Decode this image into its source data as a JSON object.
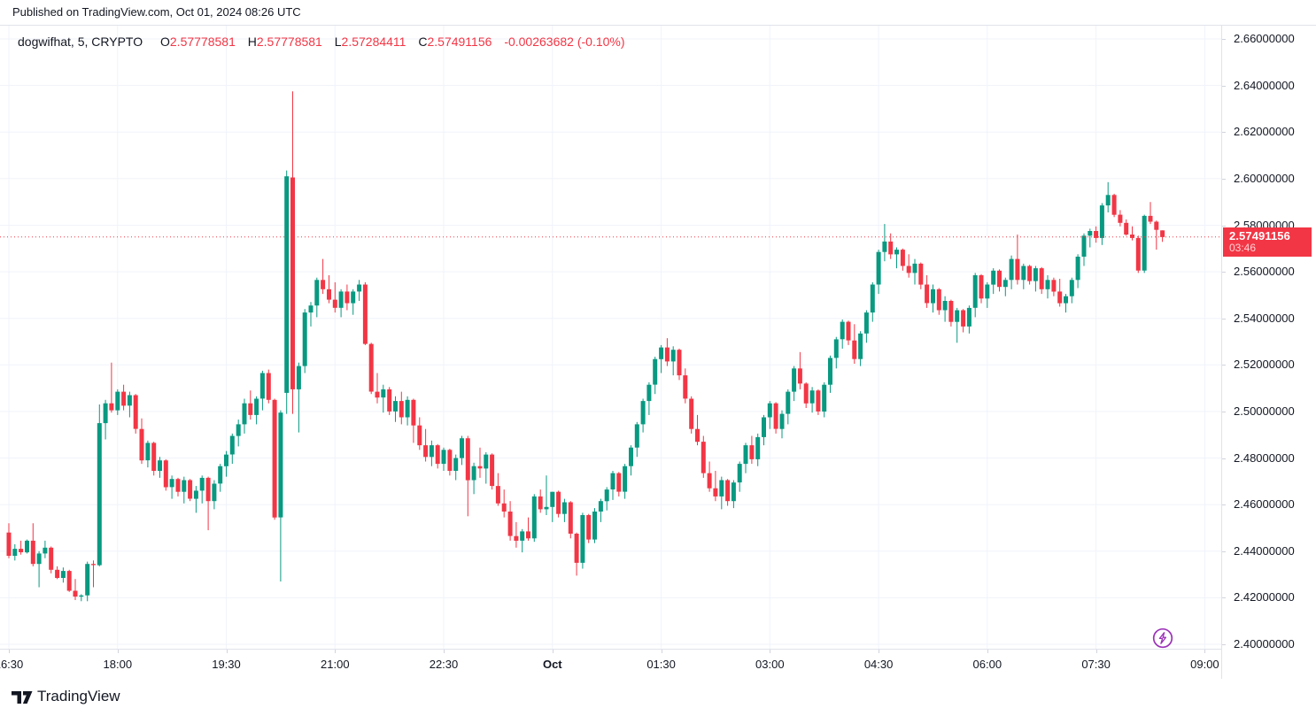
{
  "header": {
    "published_text": "Published on TradingView.com, Oct 01, 2024 08:26 UTC"
  },
  "legend": {
    "symbol_text": "dogwifhat, 5, CRYPTO",
    "o_label": "O",
    "o_value": "2.57778581",
    "h_label": "H",
    "h_value": "2.57778581",
    "l_label": "L",
    "l_value": "2.57284411",
    "c_label": "C",
    "c_value": "2.57491156",
    "change_text": "-0.00263682 (-0.10%)"
  },
  "colors": {
    "up": "#089981",
    "down": "#f23645",
    "accent_red": "#f23645",
    "grid": "#f0f3fa",
    "axis_border": "#e0e3eb",
    "tick": "#d1d4dc",
    "text": "#131722",
    "label_bg": "#f23645",
    "label_text": "#ffffff",
    "countdown_text": "#ffd2d6",
    "flash_purple": "#9c32b8",
    "background": "#ffffff"
  },
  "price_axis": {
    "labels": [
      "2.66000000",
      "2.64000000",
      "2.62000000",
      "2.60000000",
      "2.58000000",
      "2.56000000",
      "2.54000000",
      "2.52000000",
      "2.50000000",
      "2.48000000",
      "2.46000000",
      "2.44000000",
      "2.42000000",
      "2.40000000"
    ],
    "last": {
      "price_text": "2.57491156",
      "countdown": "03:46"
    }
  },
  "time_axis": {
    "labels": [
      {
        "text": "16:30",
        "bold": false
      },
      {
        "text": "18:00",
        "bold": false
      },
      {
        "text": "19:30",
        "bold": false
      },
      {
        "text": "21:00",
        "bold": false
      },
      {
        "text": "22:30",
        "bold": false
      },
      {
        "text": "Oct",
        "bold": true
      },
      {
        "text": "01:30",
        "bold": false
      },
      {
        "text": "03:00",
        "bold": false
      },
      {
        "text": "04:30",
        "bold": false
      },
      {
        "text": "06:00",
        "bold": false
      },
      {
        "text": "07:30",
        "bold": false
      },
      {
        "text": "09:00",
        "bold": false
      }
    ]
  },
  "footer": {
    "brand": "TradingView"
  },
  "chart_data": {
    "type": "candlestick",
    "title": "dogwifhat 5-minute candlestick chart",
    "symbol": "dogwifhat",
    "interval": "5",
    "exchange": "CRYPTO",
    "start_time": "16:30",
    "step_minutes": 5,
    "ylim": [
      2.4,
      2.66
    ],
    "grid": true,
    "last_bar": {
      "open": 2.57778581,
      "high": 2.57778581,
      "low": 2.57284411,
      "close": 2.57491156,
      "change": -0.00263682,
      "change_pct": -0.1,
      "countdown": "03:46"
    },
    "current_price_line": 2.57491156,
    "candles": [
      [
        2.448,
        2.452,
        2.437,
        2.438
      ],
      [
        2.438,
        2.443,
        2.436,
        2.441
      ],
      [
        2.441,
        2.4445,
        2.4385,
        2.4395
      ],
      [
        2.4395,
        2.445,
        2.439,
        2.4445
      ],
      [
        2.4445,
        2.452,
        2.4335,
        2.4345
      ],
      [
        2.4345,
        2.44,
        2.4245,
        2.439
      ],
      [
        2.439,
        2.4445,
        2.437,
        2.4415
      ],
      [
        2.4415,
        2.442,
        2.4305,
        2.432
      ],
      [
        2.432,
        2.4335,
        2.428,
        2.4285
      ],
      [
        2.4285,
        2.433,
        2.4265,
        2.4315
      ],
      [
        2.4315,
        2.432,
        2.4225,
        2.423
      ],
      [
        2.423,
        2.428,
        2.419,
        2.4205
      ],
      [
        2.4205,
        2.4215,
        2.4185,
        2.421
      ],
      [
        2.421,
        2.4355,
        2.4185,
        2.4345
      ],
      [
        2.4345,
        2.436,
        2.4245,
        2.434
      ],
      [
        2.434,
        2.503,
        2.4335,
        2.495
      ],
      [
        2.495,
        2.505,
        2.488,
        2.5035
      ],
      [
        2.5035,
        2.521,
        2.4995,
        2.5005
      ],
      [
        2.5005,
        2.5095,
        2.4985,
        2.5085
      ],
      [
        2.5085,
        2.5115,
        2.5005,
        2.5025
      ],
      [
        2.5025,
        2.5085,
        2.4975,
        2.507
      ],
      [
        2.507,
        2.5075,
        2.4905,
        2.4925
      ],
      [
        2.4925,
        2.497,
        2.4775,
        2.479
      ],
      [
        2.479,
        2.4875,
        2.476,
        2.4865
      ],
      [
        2.4865,
        2.487,
        2.4725,
        2.4745
      ],
      [
        2.4745,
        2.4805,
        2.4715,
        2.479
      ],
      [
        2.479,
        2.4795,
        2.466,
        2.4675
      ],
      [
        2.4675,
        2.4725,
        2.4625,
        2.471
      ],
      [
        2.471,
        2.4715,
        2.4635,
        2.4655
      ],
      [
        2.4655,
        2.472,
        2.4605,
        2.4705
      ],
      [
        2.4705,
        2.471,
        2.4615,
        2.4625
      ],
      [
        2.4625,
        2.468,
        2.4565,
        2.466
      ],
      [
        2.466,
        2.4725,
        2.4605,
        2.4715
      ],
      [
        2.4715,
        2.472,
        2.449,
        2.4615
      ],
      [
        2.4615,
        2.4705,
        2.458,
        2.469
      ],
      [
        2.469,
        2.4775,
        2.4655,
        2.4765
      ],
      [
        2.4765,
        2.483,
        2.472,
        2.4815
      ],
      [
        2.4815,
        2.4905,
        2.4775,
        2.4895
      ],
      [
        2.4895,
        2.4965,
        2.485,
        2.4945
      ],
      [
        2.4945,
        2.5055,
        2.4905,
        2.5035
      ],
      [
        2.5035,
        2.509,
        2.4965,
        2.4985
      ],
      [
        2.4985,
        2.5065,
        2.4945,
        2.5055
      ],
      [
        2.5055,
        2.5175,
        2.5005,
        2.5165
      ],
      [
        2.5165,
        2.518,
        2.5035,
        2.505
      ],
      [
        2.505,
        2.5055,
        2.4535,
        2.4545
      ],
      [
        2.4545,
        2.5005,
        2.427,
        2.4995
      ],
      [
        2.508,
        2.6035,
        2.499,
        2.601
      ],
      [
        2.6005,
        2.6375,
        2.499,
        2.5095
      ],
      [
        2.5095,
        2.521,
        2.491,
        2.5195
      ],
      [
        2.5195,
        2.544,
        2.5165,
        2.5425
      ],
      [
        2.5425,
        2.547,
        2.5365,
        2.5455
      ],
      [
        2.5455,
        2.5575,
        2.5405,
        2.5565
      ],
      [
        2.5565,
        2.5655,
        2.5505,
        2.5525
      ],
      [
        2.5525,
        2.5585,
        2.5465,
        2.548
      ],
      [
        2.548,
        2.5555,
        2.5425,
        2.5445
      ],
      [
        2.5445,
        2.5525,
        2.5405,
        2.5515
      ],
      [
        2.5515,
        2.5545,
        2.5435,
        2.5465
      ],
      [
        2.5465,
        2.5525,
        2.5415,
        2.5515
      ],
      [
        2.5515,
        2.5565,
        2.5475,
        2.5545
      ],
      [
        2.5545,
        2.5555,
        2.5285,
        2.529
      ],
      [
        2.529,
        2.5295,
        2.5075,
        2.5085
      ],
      [
        2.5085,
        2.5165,
        2.5035,
        2.506
      ],
      [
        2.506,
        2.5115,
        2.4995,
        2.5095
      ],
      [
        2.5095,
        2.5105,
        2.4985,
        2.5
      ],
      [
        2.5,
        2.5065,
        2.4955,
        2.5045
      ],
      [
        2.5045,
        2.5085,
        2.4945,
        2.4975
      ],
      [
        2.4975,
        2.5065,
        2.494,
        2.505
      ],
      [
        2.505,
        2.5055,
        2.4865,
        2.494
      ],
      [
        2.494,
        2.4975,
        2.4835,
        2.4855
      ],
      [
        2.4855,
        2.4925,
        2.4785,
        2.4805
      ],
      [
        2.4805,
        2.4875,
        2.4765,
        2.4855
      ],
      [
        2.4855,
        2.486,
        2.4755,
        2.4775
      ],
      [
        2.4775,
        2.4845,
        2.4745,
        2.4835
      ],
      [
        2.4835,
        2.484,
        2.4725,
        2.4745
      ],
      [
        2.4745,
        2.4815,
        2.4705,
        2.48
      ],
      [
        2.48,
        2.4895,
        2.477,
        2.4885
      ],
      [
        2.4885,
        2.4895,
        2.455,
        2.4705
      ],
      [
        2.4705,
        2.478,
        2.4645,
        2.4765
      ],
      [
        2.4765,
        2.4845,
        2.4715,
        2.4755
      ],
      [
        2.4755,
        2.4825,
        2.469,
        2.4815
      ],
      [
        2.4815,
        2.482,
        2.4665,
        2.468
      ],
      [
        2.468,
        2.4735,
        2.4595,
        2.4605
      ],
      [
        2.4605,
        2.4665,
        2.4545,
        2.457
      ],
      [
        2.457,
        2.4615,
        2.4445,
        2.4465
      ],
      [
        2.4465,
        2.4525,
        2.4415,
        2.4445
      ],
      [
        2.4445,
        2.4495,
        2.4395,
        2.4485
      ],
      [
        2.4485,
        2.4545,
        2.4445,
        2.4455
      ],
      [
        2.4455,
        2.4645,
        2.444,
        2.4635
      ],
      [
        2.4635,
        2.4665,
        2.4565,
        2.458
      ],
      [
        2.458,
        2.4725,
        2.4555,
        2.459
      ],
      [
        2.459,
        2.4655,
        2.4525,
        2.4655
      ],
      [
        2.4655,
        2.466,
        2.4545,
        2.456
      ],
      [
        2.456,
        2.4625,
        2.4525,
        2.461
      ],
      [
        2.461,
        2.4615,
        2.4455,
        2.4475
      ],
      [
        2.4475,
        2.448,
        2.4295,
        2.435
      ],
      [
        2.435,
        2.4565,
        2.4325,
        2.4555
      ],
      [
        2.4555,
        2.456,
        2.4435,
        2.445
      ],
      [
        2.445,
        2.4585,
        2.4435,
        2.457
      ],
      [
        2.457,
        2.4625,
        2.4525,
        2.4615
      ],
      [
        2.4615,
        2.4675,
        2.4575,
        2.4665
      ],
      [
        2.4665,
        2.4745,
        2.462,
        2.4735
      ],
      [
        2.4735,
        2.474,
        2.4635,
        2.4655
      ],
      [
        2.4655,
        2.4775,
        2.4625,
        2.4765
      ],
      [
        2.4765,
        2.4855,
        2.4725,
        2.4845
      ],
      [
        2.4845,
        2.4955,
        2.4805,
        2.4945
      ],
      [
        2.4945,
        2.5055,
        2.491,
        2.5045
      ],
      [
        2.5045,
        2.5125,
        2.4985,
        2.5115
      ],
      [
        2.5115,
        2.5235,
        2.5075,
        2.5225
      ],
      [
        2.5225,
        2.5285,
        2.5165,
        2.5275
      ],
      [
        2.5275,
        2.5315,
        2.5195,
        2.5215
      ],
      [
        2.5215,
        2.528,
        2.5155,
        2.5265
      ],
      [
        2.5265,
        2.527,
        2.5135,
        2.5155
      ],
      [
        2.5155,
        2.5185,
        2.5035,
        2.5055
      ],
      [
        2.5055,
        2.5065,
        2.4905,
        2.4925
      ],
      [
        2.4925,
        2.4985,
        2.4855,
        2.487
      ],
      [
        2.487,
        2.4895,
        2.4715,
        2.4735
      ],
      [
        2.4735,
        2.4785,
        2.4655,
        2.467
      ],
      [
        2.467,
        2.4745,
        2.4615,
        2.4635
      ],
      [
        2.4635,
        2.472,
        2.458,
        2.4705
      ],
      [
        2.4705,
        2.471,
        2.4595,
        2.4615
      ],
      [
        2.4615,
        2.4705,
        2.4585,
        2.4695
      ],
      [
        2.4695,
        2.4785,
        2.4655,
        2.4775
      ],
      [
        2.4775,
        2.4865,
        2.4735,
        2.4855
      ],
      [
        2.4855,
        2.4895,
        2.4775,
        2.4795
      ],
      [
        2.4795,
        2.4905,
        2.4765,
        2.489
      ],
      [
        2.489,
        2.4985,
        2.4855,
        2.4975
      ],
      [
        2.4975,
        2.5045,
        2.4925,
        2.5035
      ],
      [
        2.5035,
        2.504,
        2.4905,
        2.4925
      ],
      [
        2.4925,
        2.5005,
        2.4885,
        2.499
      ],
      [
        2.499,
        2.5095,
        2.4945,
        2.5085
      ],
      [
        2.5085,
        2.5195,
        2.5045,
        2.5185
      ],
      [
        2.5185,
        2.5255,
        2.5095,
        2.512
      ],
      [
        2.512,
        2.5125,
        2.5015,
        2.5035
      ],
      [
        2.5035,
        2.5105,
        2.4995,
        2.509
      ],
      [
        2.509,
        2.5095,
        2.4985,
        2.5
      ],
      [
        2.5,
        2.5125,
        2.4975,
        2.5115
      ],
      [
        2.5115,
        2.524,
        2.508,
        2.523
      ],
      [
        2.523,
        2.532,
        2.5185,
        2.531
      ],
      [
        2.531,
        2.5395,
        2.527,
        2.5385
      ],
      [
        2.5385,
        2.539,
        2.5285,
        2.5305
      ],
      [
        2.5305,
        2.5375,
        2.5205,
        2.5225
      ],
      [
        2.5225,
        2.5345,
        2.5195,
        2.5335
      ],
      [
        2.5335,
        2.5435,
        2.5295,
        2.5425
      ],
      [
        2.5425,
        2.5555,
        2.5385,
        2.5545
      ],
      [
        2.5545,
        2.5695,
        2.5505,
        2.5685
      ],
      [
        2.5685,
        2.5805,
        2.5645,
        2.573
      ],
      [
        2.573,
        2.5765,
        2.5655,
        2.5675
      ],
      [
        2.5675,
        2.5705,
        2.5615,
        2.5695
      ],
      [
        2.5695,
        2.57,
        2.5605,
        2.5625
      ],
      [
        2.5625,
        2.5675,
        2.5575,
        2.5595
      ],
      [
        2.5595,
        2.5655,
        2.5545,
        2.5635
      ],
      [
        2.5635,
        2.564,
        2.5525,
        2.5545
      ],
      [
        2.5545,
        2.5585,
        2.5445,
        2.5465
      ],
      [
        2.5465,
        2.5545,
        2.5425,
        2.5525
      ],
      [
        2.5525,
        2.553,
        2.5415,
        2.5435
      ],
      [
        2.5435,
        2.5495,
        2.5385,
        2.5475
      ],
      [
        2.5475,
        2.548,
        2.5365,
        2.5385
      ],
      [
        2.5385,
        2.5445,
        2.5295,
        2.5435
      ],
      [
        2.5435,
        2.544,
        2.534,
        2.5365
      ],
      [
        2.5365,
        2.5455,
        2.5335,
        2.5445
      ],
      [
        2.5445,
        2.5595,
        2.5405,
        2.5585
      ],
      [
        2.5585,
        2.559,
        2.5465,
        2.5485
      ],
      [
        2.5485,
        2.5555,
        2.5445,
        2.5545
      ],
      [
        2.5545,
        2.5615,
        2.5505,
        2.5605
      ],
      [
        2.5605,
        2.561,
        2.5515,
        2.5535
      ],
      [
        2.5535,
        2.5575,
        2.5495,
        2.5565
      ],
      [
        2.5565,
        2.567,
        2.5525,
        2.5655
      ],
      [
        2.5655,
        2.576,
        2.5545,
        2.5565
      ],
      [
        2.5565,
        2.5635,
        2.5525,
        2.5625
      ],
      [
        2.5625,
        2.563,
        2.5545,
        2.556
      ],
      [
        2.556,
        2.5625,
        2.5515,
        2.5615
      ],
      [
        2.5615,
        2.562,
        2.5505,
        2.5525
      ],
      [
        2.5525,
        2.5585,
        2.5485,
        2.5565
      ],
      [
        2.5565,
        2.5575,
        2.5495,
        2.5515
      ],
      [
        2.5515,
        2.557,
        2.545,
        2.5465
      ],
      [
        2.5465,
        2.5505,
        2.5425,
        2.5495
      ],
      [
        2.5495,
        2.5575,
        2.5465,
        2.5565
      ],
      [
        2.5565,
        2.5675,
        2.553,
        2.5665
      ],
      [
        2.5665,
        2.5765,
        2.5625,
        2.5755
      ],
      [
        2.5755,
        2.5785,
        2.5705,
        2.5775
      ],
      [
        2.5775,
        2.5795,
        2.5725,
        2.5745
      ],
      [
        2.5745,
        2.5895,
        2.5715,
        2.5885
      ],
      [
        2.5885,
        2.5985,
        2.5855,
        2.593
      ],
      [
        2.593,
        2.5935,
        2.5835,
        2.5845
      ],
      [
        2.5845,
        2.5865,
        2.5795,
        2.581
      ],
      [
        2.581,
        2.5825,
        2.5755,
        2.576
      ],
      [
        2.576,
        2.5795,
        2.5735,
        2.5745
      ],
      [
        2.5745,
        2.5755,
        2.5595,
        2.5605
      ],
      [
        2.5605,
        2.5845,
        2.5595,
        2.584
      ],
      [
        2.584,
        2.59,
        2.5805,
        2.5815
      ],
      [
        2.5815,
        2.582,
        2.5695,
        2.578
      ],
      [
        2.57778581,
        2.57778581,
        2.57284411,
        2.57491156
      ]
    ]
  }
}
